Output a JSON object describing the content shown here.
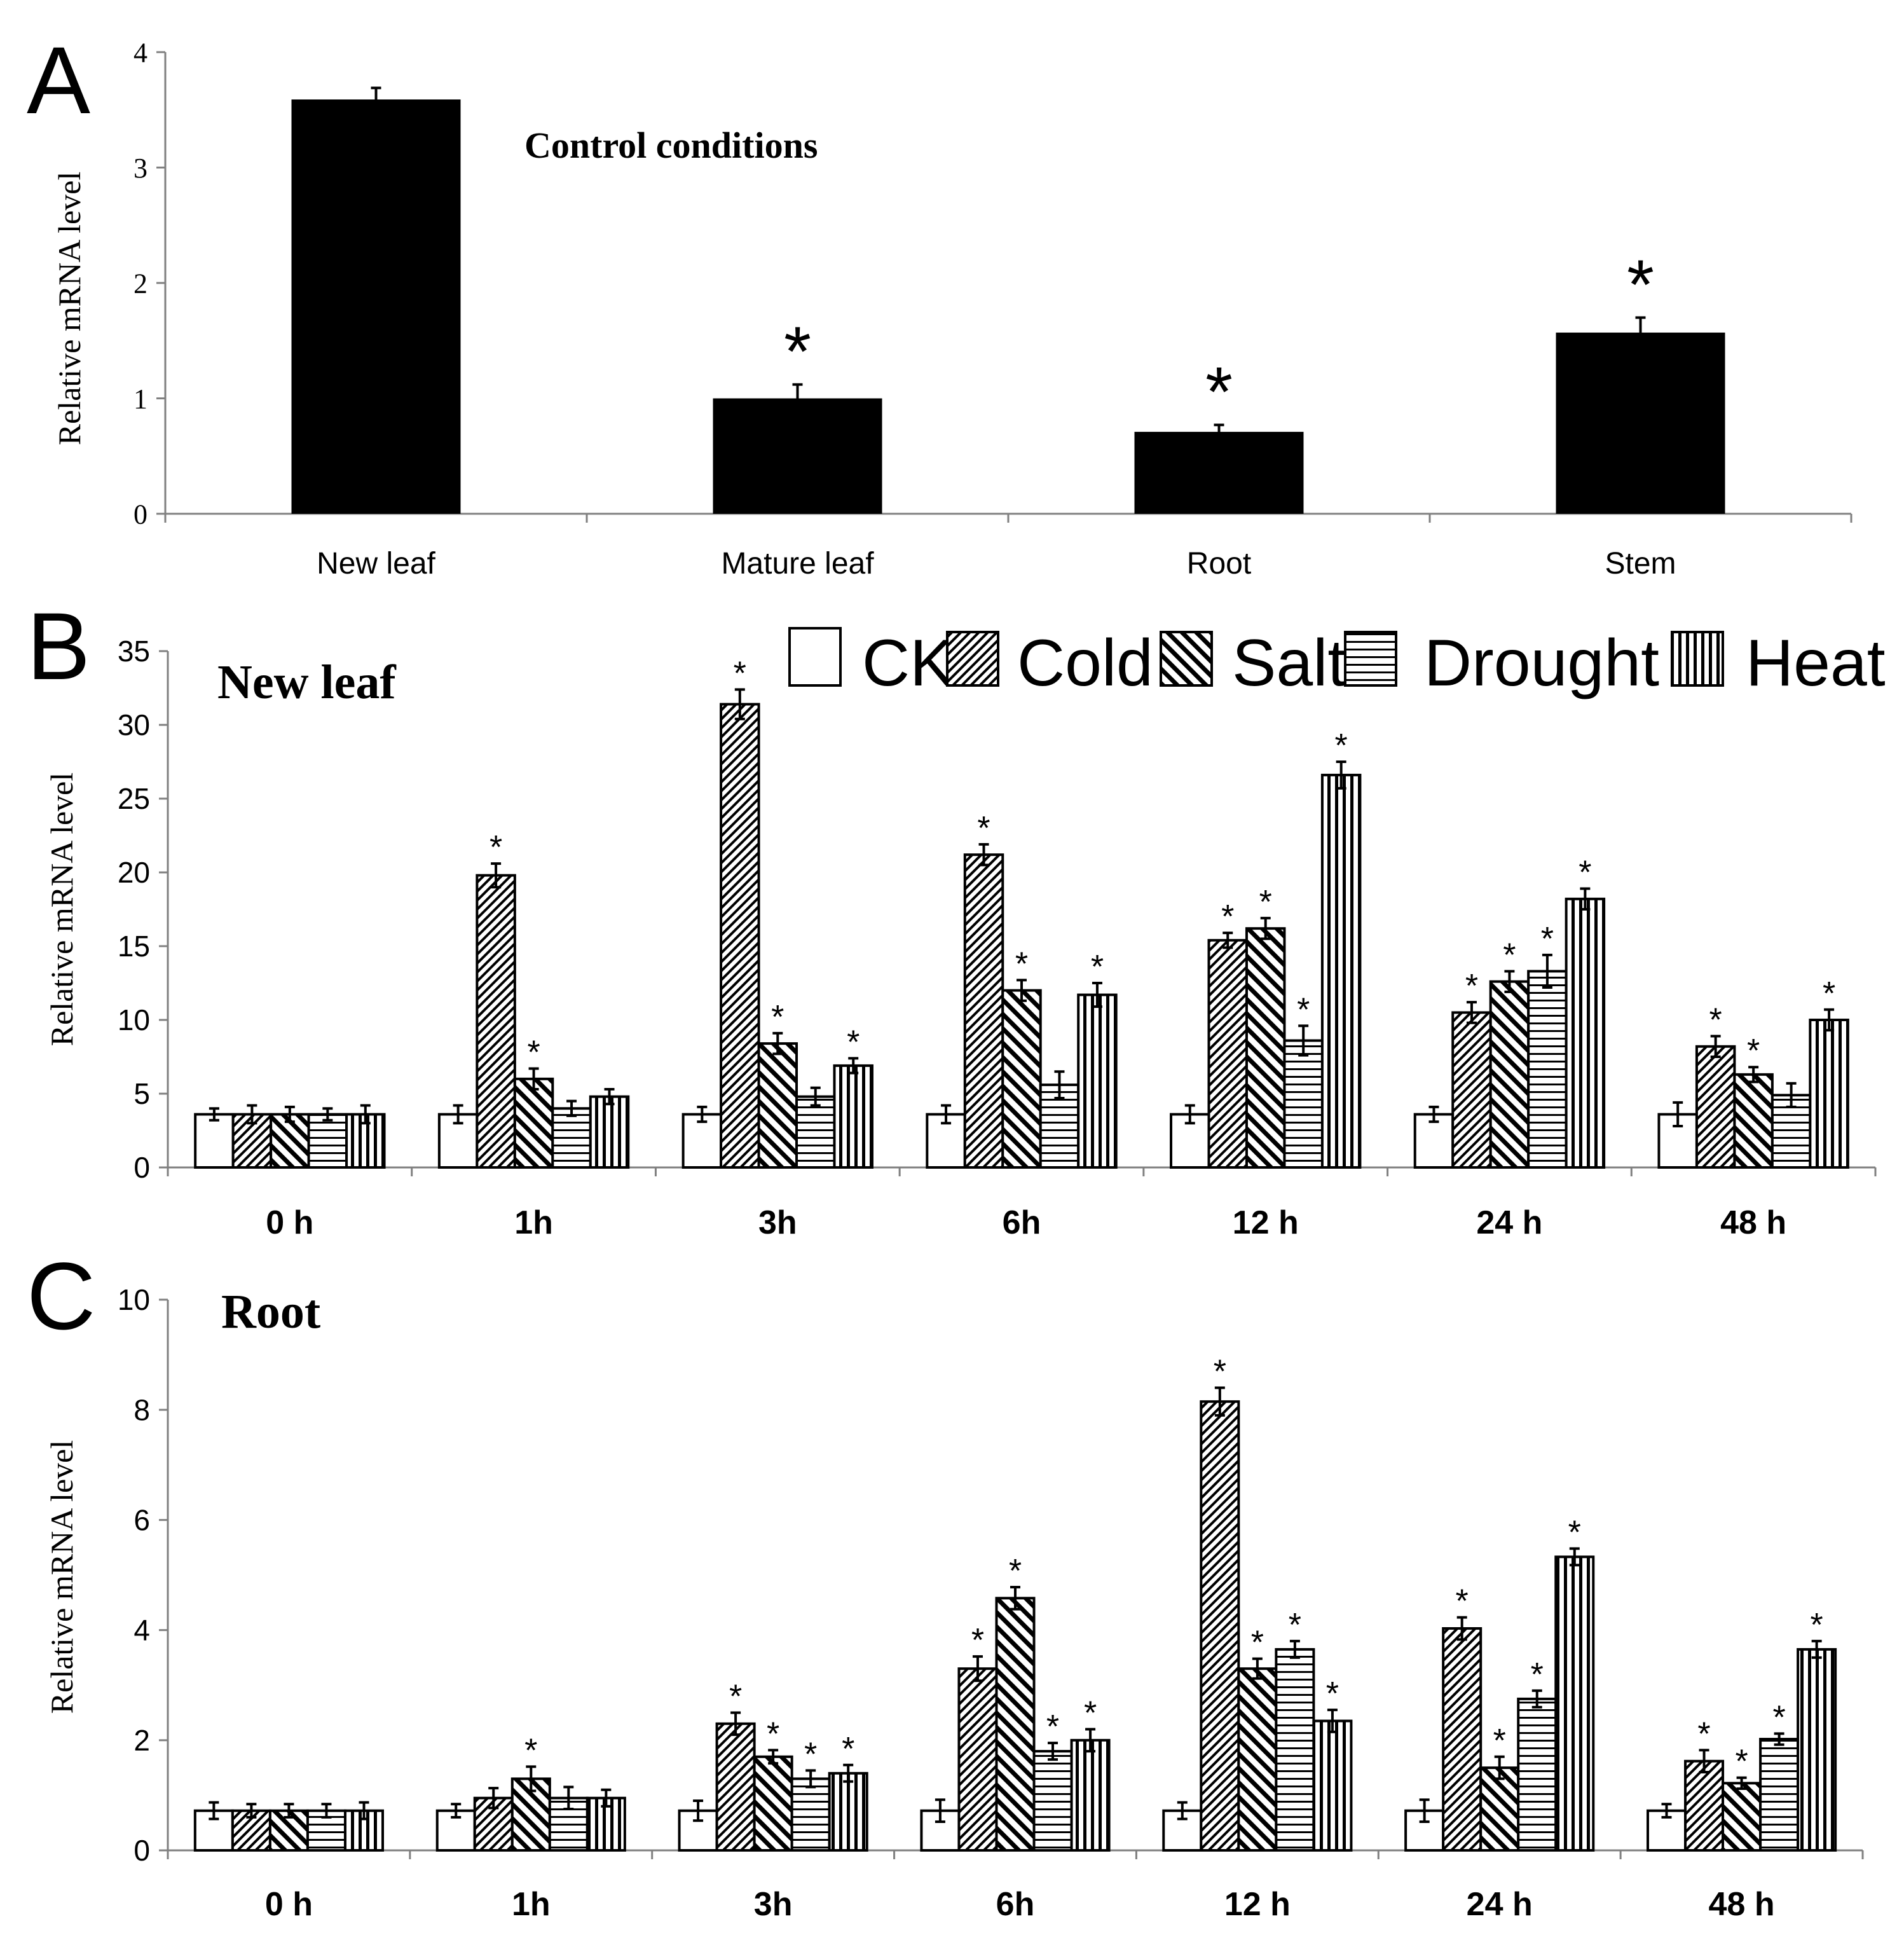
{
  "colors": {
    "bar_fill": "#000000",
    "bar_stroke": "#000000",
    "axis": "#808080",
    "background": "#ffffff",
    "text": "#000000"
  },
  "chart_data": [
    {
      "panel": "A",
      "type": "bar",
      "annotation": "Control conditions",
      "ylabel": "Relative mRNA level",
      "ylim": [
        0,
        4
      ],
      "yticks": [
        0,
        1,
        2,
        3,
        4
      ],
      "categories": [
        "New leaf",
        "Mature leaf",
        "Root",
        "Stem"
      ],
      "values": [
        3.59,
        1.0,
        0.71,
        1.57
      ],
      "errors": [
        0.1,
        0.12,
        0.06,
        0.13
      ],
      "significant": [
        false,
        true,
        true,
        true
      ],
      "sig_marker": "*"
    },
    {
      "panel": "B",
      "type": "bar",
      "title": "New leaf",
      "ylabel": "Relative mRNA level",
      "ylim": [
        0,
        35
      ],
      "yticks": [
        0,
        5,
        10,
        15,
        20,
        25,
        30,
        35
      ],
      "categories": [
        "0 h",
        "1h",
        "3h",
        "6h",
        "12 h",
        "24 h",
        "48 h"
      ],
      "legend": [
        "CK",
        "Cold",
        "Salt",
        "Drought",
        "Heat"
      ],
      "series": [
        {
          "name": "CK",
          "values": [
            3.6,
            3.6,
            3.6,
            3.6,
            3.6,
            3.6,
            3.6
          ],
          "errors": [
            0.4,
            0.6,
            0.5,
            0.6,
            0.6,
            0.5,
            0.8
          ],
          "significant": [
            false,
            false,
            false,
            false,
            false,
            false,
            false
          ]
        },
        {
          "name": "Cold",
          "values": [
            3.6,
            19.8,
            31.4,
            21.2,
            15.4,
            10.5,
            8.2
          ],
          "errors": [
            0.6,
            0.8,
            1.0,
            0.7,
            0.5,
            0.7,
            0.7
          ],
          "significant": [
            false,
            true,
            true,
            true,
            true,
            true,
            true
          ]
        },
        {
          "name": "Salt",
          "values": [
            3.6,
            6.0,
            8.4,
            12.0,
            16.2,
            12.6,
            6.3
          ],
          "errors": [
            0.5,
            0.7,
            0.7,
            0.7,
            0.7,
            0.7,
            0.5
          ],
          "significant": [
            false,
            true,
            true,
            true,
            true,
            true,
            true
          ]
        },
        {
          "name": "Drought",
          "values": [
            3.6,
            4.0,
            4.8,
            5.6,
            8.6,
            13.3,
            4.9
          ],
          "errors": [
            0.4,
            0.5,
            0.6,
            0.9,
            1.0,
            1.1,
            0.8
          ],
          "significant": [
            false,
            false,
            false,
            false,
            true,
            true,
            false
          ]
        },
        {
          "name": "Heat",
          "values": [
            3.6,
            4.8,
            6.9,
            11.7,
            26.6,
            18.2,
            10.0
          ],
          "errors": [
            0.6,
            0.5,
            0.5,
            0.8,
            0.9,
            0.7,
            0.7
          ],
          "significant": [
            false,
            false,
            true,
            true,
            true,
            true,
            true
          ]
        }
      ],
      "sig_marker": "*"
    },
    {
      "panel": "C",
      "type": "bar",
      "title": "Root",
      "ylabel": "Relative mRNA level",
      "ylim": [
        0,
        10
      ],
      "yticks": [
        0,
        2,
        4,
        6,
        8,
        10
      ],
      "categories": [
        "0 h",
        "1h",
        "3h",
        "6h",
        "12 h",
        "24 h",
        "48 h"
      ],
      "legend": [
        "CK",
        "Cold",
        "Salt",
        "Drought",
        "Heat"
      ],
      "series": [
        {
          "name": "CK",
          "values": [
            0.72,
            0.72,
            0.72,
            0.72,
            0.72,
            0.72,
            0.72
          ],
          "errors": [
            0.15,
            0.12,
            0.18,
            0.2,
            0.15,
            0.2,
            0.12
          ],
          "significant": [
            false,
            false,
            false,
            false,
            false,
            false,
            false
          ]
        },
        {
          "name": "Cold",
          "values": [
            0.72,
            0.95,
            2.3,
            3.3,
            8.15,
            4.03,
            1.62
          ],
          "errors": [
            0.12,
            0.18,
            0.2,
            0.22,
            0.25,
            0.2,
            0.2
          ],
          "significant": [
            false,
            false,
            true,
            true,
            true,
            true,
            true
          ]
        },
        {
          "name": "Salt",
          "values": [
            0.72,
            1.3,
            1.7,
            4.58,
            3.3,
            1.5,
            1.22
          ],
          "errors": [
            0.12,
            0.22,
            0.12,
            0.2,
            0.18,
            0.2,
            0.1
          ],
          "significant": [
            false,
            true,
            true,
            true,
            true,
            true,
            true
          ]
        },
        {
          "name": "Drought",
          "values": [
            0.72,
            0.95,
            1.3,
            1.8,
            3.65,
            2.75,
            2.02
          ],
          "errors": [
            0.12,
            0.2,
            0.15,
            0.15,
            0.15,
            0.15,
            0.1
          ],
          "significant": [
            false,
            false,
            true,
            true,
            true,
            true,
            true
          ]
        },
        {
          "name": "Heat",
          "values": [
            0.72,
            0.95,
            1.4,
            2.0,
            2.35,
            5.33,
            3.65
          ],
          "errors": [
            0.15,
            0.15,
            0.15,
            0.2,
            0.2,
            0.15,
            0.15
          ],
          "significant": [
            false,
            false,
            true,
            true,
            true,
            true,
            true
          ]
        }
      ],
      "sig_marker": "*"
    }
  ],
  "panel_labels": [
    "A",
    "B",
    "C"
  ]
}
